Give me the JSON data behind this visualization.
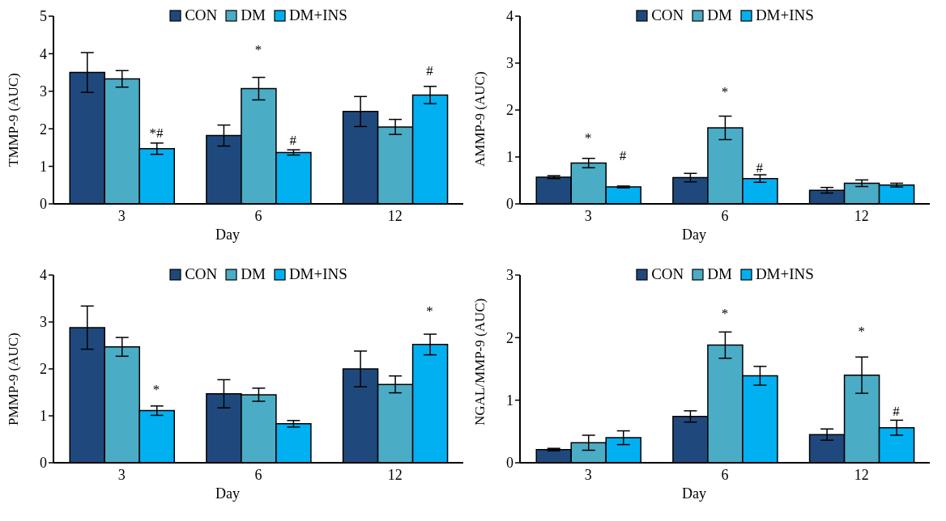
{
  "chart_data": [
    {
      "type": "bar",
      "categories": [
        "3",
        "6",
        "12"
      ],
      "xlabel": "Day",
      "ylabel": "TMMP-9 (AUC)",
      "ylim": [
        0,
        5
      ],
      "yticks": [
        0,
        1,
        2,
        3,
        4,
        5
      ],
      "legend": "top",
      "grid": false,
      "series": [
        {
          "name": "CON",
          "color": "#1f497d",
          "values": [
            3.5,
            1.82,
            2.46
          ],
          "errors": [
            0.53,
            0.28,
            0.4
          ]
        },
        {
          "name": "DM",
          "color": "#4bacc6",
          "values": [
            3.33,
            3.07,
            2.05
          ],
          "errors": [
            0.22,
            0.3,
            0.2
          ]
        },
        {
          "name": "DM+INS",
          "color": "#00b0f0",
          "values": [
            1.47,
            1.37,
            2.9
          ],
          "errors": [
            0.15,
            0.07,
            0.23
          ]
        }
      ],
      "annotations": [
        "*#",
        "*",
        "#",
        "#"
      ]
    },
    {
      "type": "bar",
      "categories": [
        "3",
        "6",
        "12"
      ],
      "xlabel": "Day",
      "ylabel": "AMMP-9 (AUC)",
      "ylim": [
        0,
        4
      ],
      "yticks": [
        0,
        1,
        2,
        3,
        4
      ],
      "legend": "top",
      "grid": false,
      "series": [
        {
          "name": "CON",
          "color": "#1f497d",
          "values": [
            0.57,
            0.56,
            0.29
          ],
          "errors": [
            0.03,
            0.09,
            0.06
          ]
        },
        {
          "name": "DM",
          "color": "#4bacc6",
          "values": [
            0.87,
            1.62,
            0.44
          ],
          "errors": [
            0.1,
            0.25,
            0.07
          ]
        },
        {
          "name": "DM+INS",
          "color": "#00b0f0",
          "values": [
            0.36,
            0.54,
            0.4
          ],
          "errors": [
            0.02,
            0.08,
            0.04
          ]
        }
      ],
      "annotations": [
        "*",
        "#",
        "*",
        "#"
      ]
    },
    {
      "type": "bar",
      "categories": [
        "3",
        "6",
        "12"
      ],
      "xlabel": "Day",
      "ylabel": "PMMP-9 (AUC)",
      "ylim": [
        0,
        4
      ],
      "yticks": [
        0,
        1,
        2,
        3,
        4
      ],
      "legend": "top",
      "grid": false,
      "series": [
        {
          "name": "CON",
          "color": "#1f497d",
          "values": [
            2.88,
            1.47,
            2.0
          ],
          "errors": [
            0.46,
            0.3,
            0.38
          ]
        },
        {
          "name": "DM",
          "color": "#4bacc6",
          "values": [
            2.47,
            1.45,
            1.67
          ],
          "errors": [
            0.2,
            0.14,
            0.18
          ]
        },
        {
          "name": "DM+INS",
          "color": "#00b0f0",
          "values": [
            1.11,
            0.83,
            2.52
          ],
          "errors": [
            0.1,
            0.07,
            0.22
          ]
        }
      ],
      "annotations": [
        "*",
        "*"
      ]
    },
    {
      "type": "bar",
      "categories": [
        "3",
        "6",
        "12"
      ],
      "xlabel": "Day",
      "ylabel": "NGAL/MMP-9 (AUC)",
      "ylim": [
        0,
        3
      ],
      "yticks": [
        0,
        1,
        2,
        3
      ],
      "legend": "top",
      "grid": false,
      "series": [
        {
          "name": "CON",
          "color": "#1f497d",
          "values": [
            0.21,
            0.74,
            0.45
          ],
          "errors": [
            0.02,
            0.09,
            0.09
          ]
        },
        {
          "name": "DM",
          "color": "#4bacc6",
          "values": [
            0.32,
            1.88,
            1.4
          ],
          "errors": [
            0.12,
            0.21,
            0.29
          ]
        },
        {
          "name": "DM+INS",
          "color": "#00b0f0",
          "values": [
            0.4,
            1.39,
            0.56
          ],
          "errors": [
            0.11,
            0.15,
            0.12
          ]
        }
      ],
      "annotations": [
        "*",
        "*",
        "#"
      ]
    }
  ]
}
